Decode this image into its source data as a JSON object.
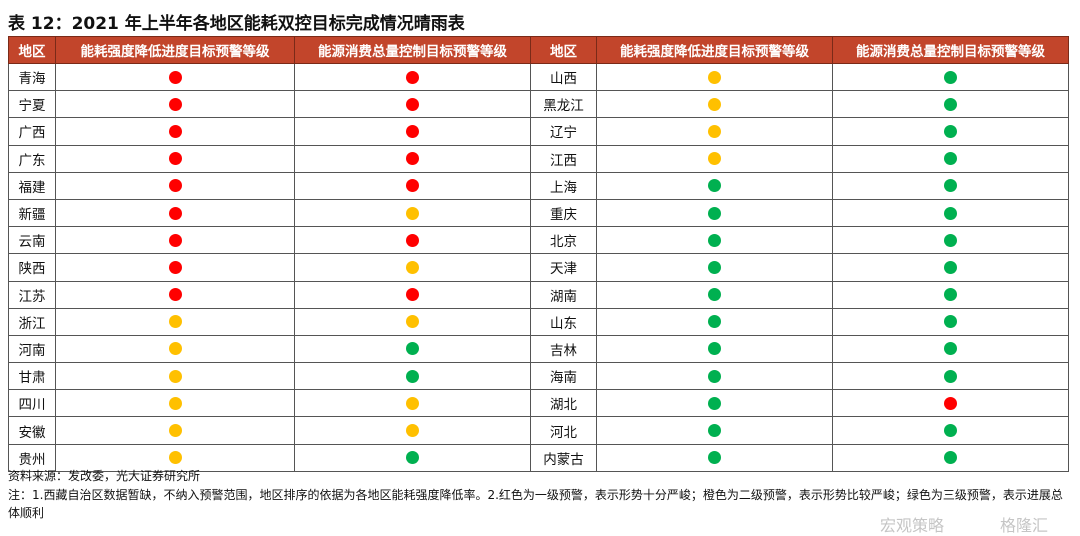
{
  "title": "表 12：2021 年上半年各地区能耗双控目标完成情况晴雨表",
  "headers": [
    "地区",
    "能耗强度降低进度目标预警等级",
    "能源消费总量控制目标预警等级",
    "地区",
    "能耗强度降低进度目标预警等级",
    "能源消费总量控制目标预警等级"
  ],
  "colors": {
    "red": "#ff0000",
    "orange": "#ffc000",
    "green": "#00b050"
  },
  "left": [
    [
      "青海",
      "red",
      "red"
    ],
    [
      "宁夏",
      "red",
      "red"
    ],
    [
      "广西",
      "red",
      "red"
    ],
    [
      "广东",
      "red",
      "red"
    ],
    [
      "福建",
      "red",
      "red"
    ],
    [
      "新疆",
      "red",
      "orange"
    ],
    [
      "云南",
      "red",
      "red"
    ],
    [
      "陕西",
      "red",
      "orange"
    ],
    [
      "江苏",
      "red",
      "red"
    ],
    [
      "浙江",
      "orange",
      "orange"
    ],
    [
      "河南",
      "orange",
      "green"
    ],
    [
      "甘肃",
      "orange",
      "green"
    ],
    [
      "四川",
      "orange",
      "orange"
    ],
    [
      "安徽",
      "orange",
      "orange"
    ],
    [
      "贵州",
      "orange",
      "green"
    ]
  ],
  "right": [
    [
      "山西",
      "orange",
      "green"
    ],
    [
      "黑龙江",
      "orange",
      "green"
    ],
    [
      "辽宁",
      "orange",
      "green"
    ],
    [
      "江西",
      "orange",
      "green"
    ],
    [
      "上海",
      "green",
      "green"
    ],
    [
      "重庆",
      "green",
      "green"
    ],
    [
      "北京",
      "green",
      "green"
    ],
    [
      "天津",
      "green",
      "green"
    ],
    [
      "湖南",
      "green",
      "green"
    ],
    [
      "山东",
      "green",
      "green"
    ],
    [
      "吉林",
      "green",
      "green"
    ],
    [
      "海南",
      "green",
      "green"
    ],
    [
      "湖北",
      "green",
      "red"
    ],
    [
      "河北",
      "green",
      "green"
    ],
    [
      "内蒙古",
      "green",
      "green"
    ]
  ],
  "source": "资料来源：发改委，光大证券研究所",
  "note": "注：1.西藏自治区数据暂缺，不纳入预警范围，地区排序的依据为各地区能耗强度降低率。2.红色为一级预警，表示形势十分严峻；橙色为二级预警，表示形势比较严峻；绿色为三级预警，表示进展总体顺利",
  "watermarks": [
    "宏观策略",
    "格隆汇"
  ]
}
